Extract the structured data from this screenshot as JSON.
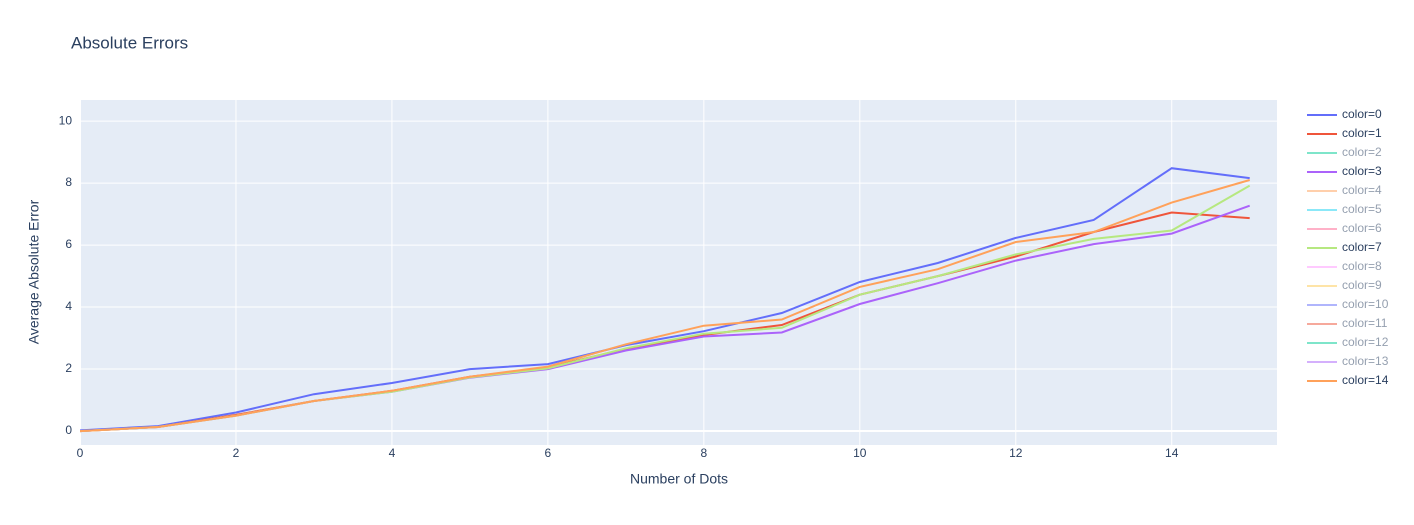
{
  "chart_data": {
    "type": "line",
    "title": "Absolute Errors",
    "xlabel": "Number of Dots",
    "ylabel": "Average Absolute Error",
    "x": [
      0,
      1,
      2,
      3,
      4,
      5,
      6,
      7,
      8,
      9,
      10,
      11,
      12,
      13,
      14,
      15
    ],
    "xlim": [
      0,
      15.35
    ],
    "xticks": [
      0,
      2,
      4,
      6,
      8,
      10,
      12,
      14
    ],
    "ylim": [
      -0.45,
      10.68
    ],
    "yticks": [
      0,
      2,
      4,
      6,
      8,
      10
    ],
    "grid": true,
    "legend": "right",
    "series": [
      {
        "name": "color=0",
        "color": "#636efa",
        "values": [
          0.02,
          0.16,
          0.6,
          1.19,
          1.55,
          2.0,
          2.16,
          2.77,
          3.22,
          3.81,
          4.81,
          5.42,
          6.23,
          6.81,
          8.48,
          8.16
        ]
      },
      {
        "name": "color=1",
        "color": "#EF553B",
        "values": [
          0,
          0.13,
          0.52,
          0.97,
          1.3,
          1.75,
          2.05,
          2.65,
          3.1,
          3.42,
          4.4,
          5.0,
          5.63,
          6.42,
          7.05,
          6.87
        ]
      },
      {
        "name": "color=2",
        "color": "#00cc96",
        "visible": "legendonly"
      },
      {
        "name": "color=3",
        "color": "#ab63fa",
        "values": [
          0,
          0.13,
          0.5,
          0.97,
          1.27,
          1.72,
          2.0,
          2.6,
          3.05,
          3.18,
          4.1,
          4.77,
          5.5,
          6.03,
          6.37,
          7.27
        ]
      },
      {
        "name": "color=4",
        "color": "#FFA15A",
        "visible": "legendonly"
      },
      {
        "name": "color=5",
        "color": "#19d3f3",
        "visible": "legendonly"
      },
      {
        "name": "color=6",
        "color": "#FF6692",
        "visible": "legendonly"
      },
      {
        "name": "color=7",
        "color": "#B6E880",
        "values": [
          0,
          0.13,
          0.5,
          0.97,
          1.27,
          1.73,
          2.02,
          2.67,
          3.14,
          3.33,
          4.4,
          5.0,
          5.7,
          6.2,
          6.47,
          7.92
        ]
      },
      {
        "name": "color=8",
        "color": "#FF97FF",
        "visible": "legendonly"
      },
      {
        "name": "color=9",
        "color": "#FECB52",
        "visible": "legendonly"
      },
      {
        "name": "color=10",
        "color": "#636efa",
        "visible": "legendonly"
      },
      {
        "name": "color=11",
        "color": "#EF553B",
        "visible": "legendonly"
      },
      {
        "name": "color=12",
        "color": "#00cc96",
        "visible": "legendonly"
      },
      {
        "name": "color=13",
        "color": "#ab63fa",
        "visible": "legendonly"
      },
      {
        "name": "color=14",
        "color": "#FFA15A",
        "values": [
          0,
          0.13,
          0.5,
          0.97,
          1.3,
          1.75,
          2.08,
          2.8,
          3.4,
          3.6,
          4.65,
          5.22,
          6.1,
          6.42,
          7.37,
          8.1
        ]
      }
    ]
  }
}
